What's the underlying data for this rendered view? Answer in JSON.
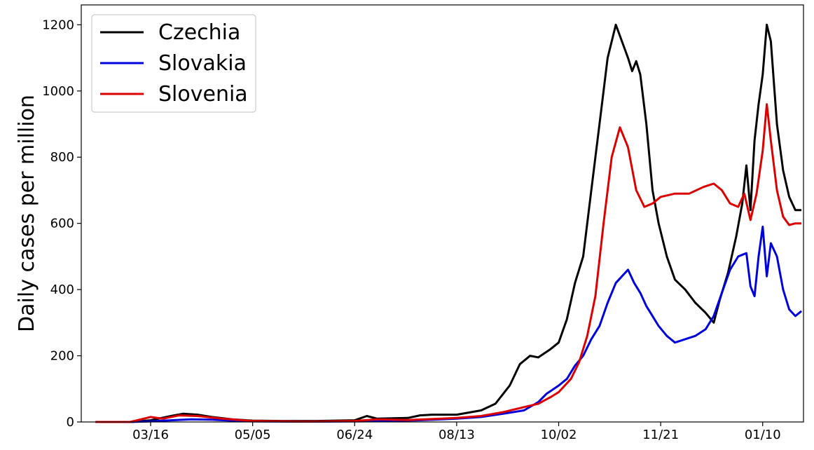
{
  "chart_data": {
    "type": "line",
    "title": "",
    "xlabel": "",
    "ylabel": "Daily cases per million",
    "ylim": [
      0,
      1260
    ],
    "xlim": [
      "2020-02-11",
      "2021-01-30"
    ],
    "yticks": [
      0,
      200,
      400,
      600,
      800,
      1000,
      1200
    ],
    "xticks": [
      {
        "date": "2020-03-16",
        "label": "03/16"
      },
      {
        "date": "2020-05-05",
        "label": "05/05"
      },
      {
        "date": "2020-06-24",
        "label": "06/24"
      },
      {
        "date": "2020-08-13",
        "label": "08/13"
      },
      {
        "date": "2020-10-02",
        "label": "10/02"
      },
      {
        "date": "2020-11-21",
        "label": "11/21"
      },
      {
        "date": "2021-01-10",
        "label": "01/10"
      }
    ],
    "grid": false,
    "legend_position": "top-left",
    "series": [
      {
        "name": "Czechia",
        "color": "#000000",
        "points": [
          [
            "2020-02-18",
            0
          ],
          [
            "2020-03-06",
            0
          ],
          [
            "2020-03-16",
            5
          ],
          [
            "2020-03-26",
            18
          ],
          [
            "2020-04-01",
            25
          ],
          [
            "2020-04-08",
            22
          ],
          [
            "2020-04-15",
            15
          ],
          [
            "2020-04-25",
            8
          ],
          [
            "2020-05-05",
            4
          ],
          [
            "2020-05-20",
            3
          ],
          [
            "2020-06-05",
            3
          ],
          [
            "2020-06-24",
            5
          ],
          [
            "2020-06-30",
            18
          ],
          [
            "2020-07-05",
            10
          ],
          [
            "2020-07-20",
            12
          ],
          [
            "2020-07-26",
            20
          ],
          [
            "2020-08-01",
            22
          ],
          [
            "2020-08-13",
            22
          ],
          [
            "2020-08-25",
            35
          ],
          [
            "2020-09-01",
            55
          ],
          [
            "2020-09-08",
            110
          ],
          [
            "2020-09-13",
            175
          ],
          [
            "2020-09-18",
            200
          ],
          [
            "2020-09-22",
            195
          ],
          [
            "2020-09-28",
            220
          ],
          [
            "2020-10-02",
            240
          ],
          [
            "2020-10-06",
            310
          ],
          [
            "2020-10-10",
            420
          ],
          [
            "2020-10-14",
            500
          ],
          [
            "2020-10-18",
            700
          ],
          [
            "2020-10-22",
            900
          ],
          [
            "2020-10-26",
            1100
          ],
          [
            "2020-10-30",
            1200
          ],
          [
            "2020-11-02",
            1150
          ],
          [
            "2020-11-05",
            1100
          ],
          [
            "2020-11-07",
            1060
          ],
          [
            "2020-11-09",
            1090
          ],
          [
            "2020-11-11",
            1050
          ],
          [
            "2020-11-14",
            900
          ],
          [
            "2020-11-17",
            700
          ],
          [
            "2020-11-20",
            600
          ],
          [
            "2020-11-24",
            500
          ],
          [
            "2020-11-28",
            430
          ],
          [
            "2020-12-03",
            400
          ],
          [
            "2020-12-08",
            360
          ],
          [
            "2020-12-13",
            330
          ],
          [
            "2020-12-17",
            300
          ],
          [
            "2020-12-20",
            370
          ],
          [
            "2020-12-24",
            450
          ],
          [
            "2020-12-28",
            560
          ],
          [
            "2020-12-31",
            660
          ],
          [
            "2021-01-02",
            775
          ],
          [
            "2021-01-04",
            640
          ],
          [
            "2021-01-06",
            850
          ],
          [
            "2021-01-08",
            960
          ],
          [
            "2021-01-10",
            1050
          ],
          [
            "2021-01-12",
            1200
          ],
          [
            "2021-01-14",
            1150
          ],
          [
            "2021-01-17",
            900
          ],
          [
            "2021-01-20",
            760
          ],
          [
            "2021-01-23",
            680
          ],
          [
            "2021-01-26",
            640
          ],
          [
            "2021-01-29",
            640
          ]
        ]
      },
      {
        "name": "Slovakia",
        "color": "#0000dd",
        "points": [
          [
            "2020-02-18",
            0
          ],
          [
            "2020-03-06",
            0
          ],
          [
            "2020-03-16",
            2
          ],
          [
            "2020-03-26",
            5
          ],
          [
            "2020-04-05",
            8
          ],
          [
            "2020-04-15",
            7
          ],
          [
            "2020-04-25",
            4
          ],
          [
            "2020-05-05",
            2
          ],
          [
            "2020-06-01",
            1
          ],
          [
            "2020-06-24",
            2
          ],
          [
            "2020-07-10",
            3
          ],
          [
            "2020-07-25",
            5
          ],
          [
            "2020-08-13",
            10
          ],
          [
            "2020-08-25",
            15
          ],
          [
            "2020-09-05",
            25
          ],
          [
            "2020-09-15",
            35
          ],
          [
            "2020-09-22",
            60
          ],
          [
            "2020-09-26",
            85
          ],
          [
            "2020-10-02",
            110
          ],
          [
            "2020-10-06",
            130
          ],
          [
            "2020-10-10",
            170
          ],
          [
            "2020-10-14",
            200
          ],
          [
            "2020-10-18",
            250
          ],
          [
            "2020-10-22",
            290
          ],
          [
            "2020-10-26",
            360
          ],
          [
            "2020-10-30",
            420
          ],
          [
            "2020-11-02",
            440
          ],
          [
            "2020-11-05",
            460
          ],
          [
            "2020-11-08",
            420
          ],
          [
            "2020-11-11",
            390
          ],
          [
            "2020-11-14",
            350
          ],
          [
            "2020-11-17",
            320
          ],
          [
            "2020-11-20",
            290
          ],
          [
            "2020-11-24",
            260
          ],
          [
            "2020-11-28",
            240
          ],
          [
            "2020-12-03",
            250
          ],
          [
            "2020-12-08",
            260
          ],
          [
            "2020-12-13",
            280
          ],
          [
            "2020-12-17",
            320
          ],
          [
            "2020-12-21",
            390
          ],
          [
            "2020-12-25",
            460
          ],
          [
            "2020-12-29",
            500
          ],
          [
            "2021-01-02",
            510
          ],
          [
            "2021-01-04",
            410
          ],
          [
            "2021-01-06",
            380
          ],
          [
            "2021-01-08",
            500
          ],
          [
            "2021-01-10",
            590
          ],
          [
            "2021-01-12",
            440
          ],
          [
            "2021-01-14",
            540
          ],
          [
            "2021-01-17",
            500
          ],
          [
            "2021-01-20",
            400
          ],
          [
            "2021-01-23",
            340
          ],
          [
            "2021-01-26",
            320
          ],
          [
            "2021-01-29",
            335
          ]
        ]
      },
      {
        "name": "Slovenia",
        "color": "#dd0000",
        "points": [
          [
            "2020-02-18",
            0
          ],
          [
            "2020-03-06",
            0
          ],
          [
            "2020-03-16",
            15
          ],
          [
            "2020-03-22",
            10
          ],
          [
            "2020-03-30",
            20
          ],
          [
            "2020-04-08",
            18
          ],
          [
            "2020-04-20",
            10
          ],
          [
            "2020-05-05",
            3
          ],
          [
            "2020-06-01",
            1
          ],
          [
            "2020-06-24",
            3
          ],
          [
            "2020-07-05",
            8
          ],
          [
            "2020-07-20",
            6
          ],
          [
            "2020-08-13",
            12
          ],
          [
            "2020-08-25",
            18
          ],
          [
            "2020-09-05",
            30
          ],
          [
            "2020-09-15",
            45
          ],
          [
            "2020-09-22",
            55
          ],
          [
            "2020-09-28",
            75
          ],
          [
            "2020-10-02",
            90
          ],
          [
            "2020-10-08",
            130
          ],
          [
            "2020-10-12",
            180
          ],
          [
            "2020-10-16",
            260
          ],
          [
            "2020-10-20",
            380
          ],
          [
            "2020-10-24",
            600
          ],
          [
            "2020-10-28",
            800
          ],
          [
            "2020-11-01",
            890
          ],
          [
            "2020-11-05",
            830
          ],
          [
            "2020-11-09",
            700
          ],
          [
            "2020-11-13",
            650
          ],
          [
            "2020-11-17",
            660
          ],
          [
            "2020-11-21",
            680
          ],
          [
            "2020-11-28",
            690
          ],
          [
            "2020-12-05",
            690
          ],
          [
            "2020-12-12",
            710
          ],
          [
            "2020-12-17",
            720
          ],
          [
            "2020-12-21",
            700
          ],
          [
            "2020-12-25",
            660
          ],
          [
            "2020-12-29",
            650
          ],
          [
            "2021-01-01",
            690
          ],
          [
            "2021-01-04",
            610
          ],
          [
            "2021-01-07",
            690
          ],
          [
            "2021-01-10",
            820
          ],
          [
            "2021-01-12",
            960
          ],
          [
            "2021-01-14",
            850
          ],
          [
            "2021-01-17",
            700
          ],
          [
            "2021-01-20",
            620
          ],
          [
            "2021-01-23",
            595
          ],
          [
            "2021-01-26",
            600
          ],
          [
            "2021-01-29",
            600
          ]
        ]
      }
    ]
  }
}
